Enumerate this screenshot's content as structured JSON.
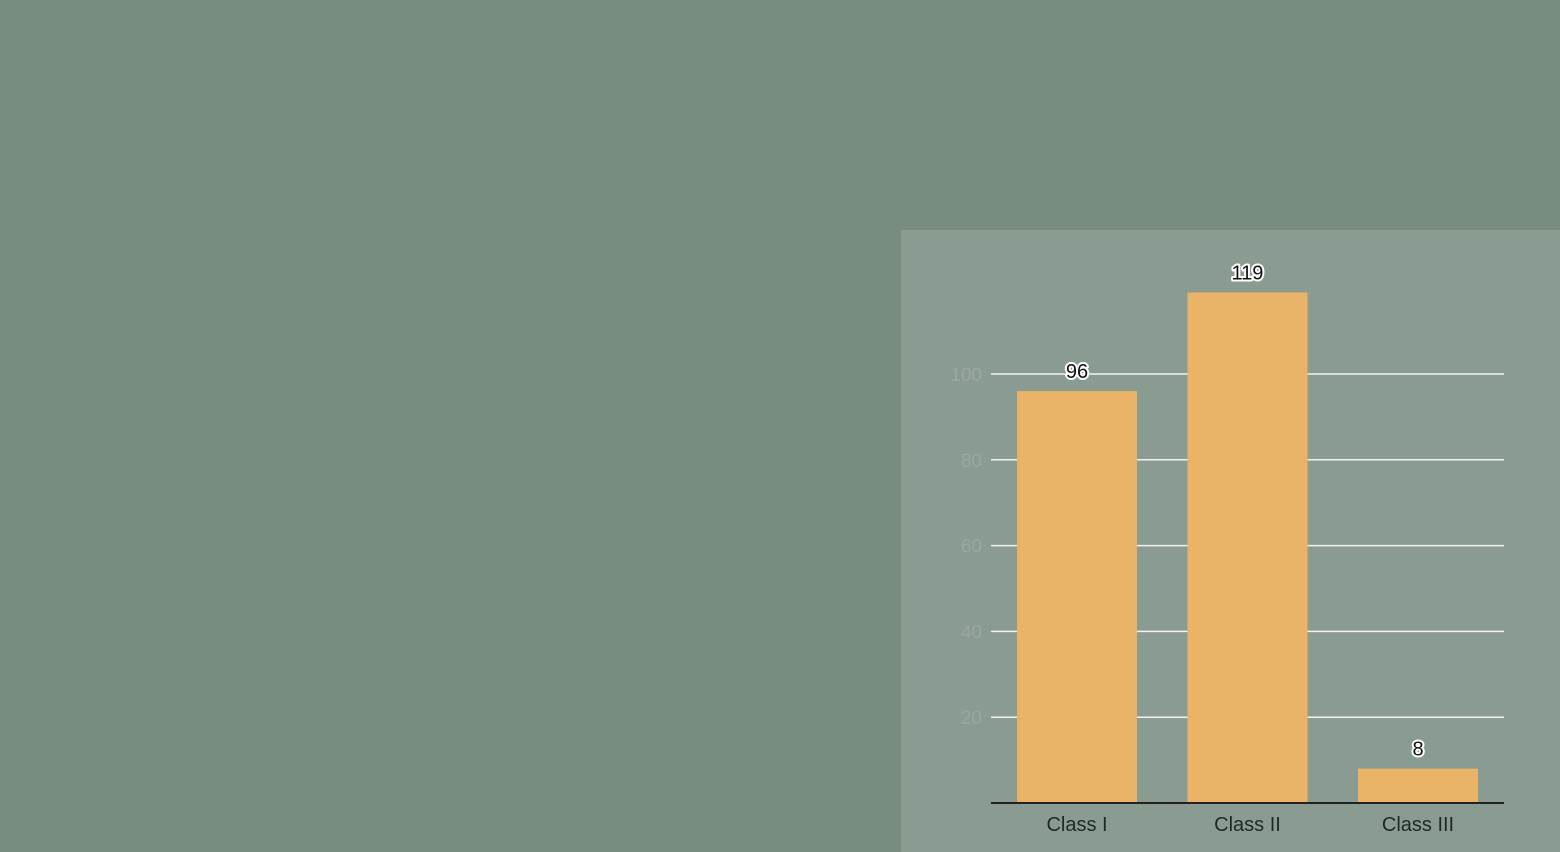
{
  "colors": {
    "background": "#788d80",
    "panel": "#8a9c91",
    "bar": "#e9b467",
    "grid": "#f2f2f2",
    "axis": "#222222"
  },
  "chart_data": {
    "type": "bar",
    "title": "",
    "xlabel": "",
    "ylabel": "",
    "categories": [
      "Class I",
      "Class II",
      "Class III"
    ],
    "values": [
      96,
      119,
      8
    ],
    "yticks": [
      20,
      40,
      60,
      80,
      100
    ],
    "ylim": [
      0,
      119
    ],
    "grid": true,
    "legend": "none",
    "data_labels": true
  }
}
